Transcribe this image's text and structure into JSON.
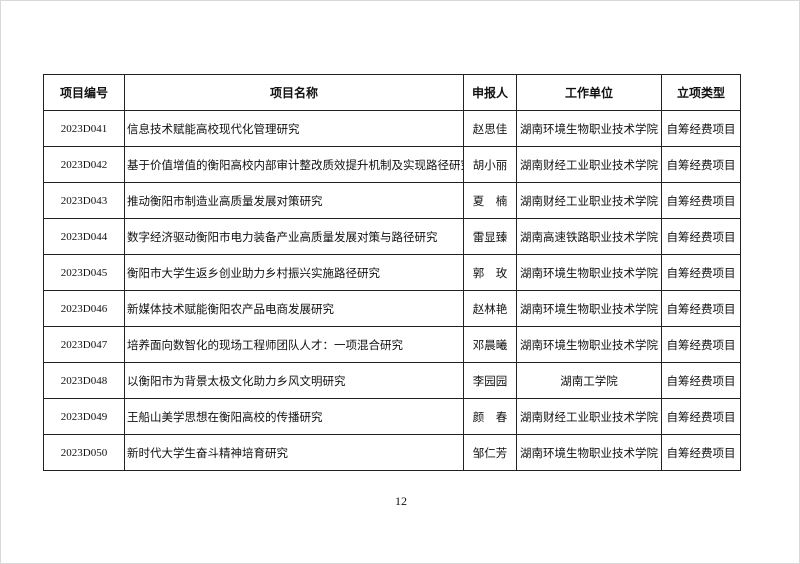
{
  "table": {
    "headers": [
      "项目编号",
      "项目名称",
      "申报人",
      "工作单位",
      "立项类型"
    ],
    "rows": [
      [
        "2023D041",
        "信息技术赋能高校现代化管理研究",
        "赵思佳",
        "湖南环境生物职业技术学院",
        "自筹经费项目"
      ],
      [
        "2023D042",
        "基于价值增值的衡阳高校内部审计整改质效提升机制及实现路径研究",
        "胡小丽",
        "湖南财经工业职业技术学院",
        "自筹经费项目"
      ],
      [
        "2023D043",
        "推动衡阳市制造业高质量发展对策研究",
        "夏　楠",
        "湖南财经工业职业技术学院",
        "自筹经费项目"
      ],
      [
        "2023D044",
        "数字经济驱动衡阳市电力装备产业高质量发展对策与路径研究",
        "雷显臻",
        "湖南高速铁路职业技术学院",
        "自筹经费项目"
      ],
      [
        "2023D045",
        "衡阳市大学生返乡创业助力乡村振兴实施路径研究",
        "郭　玫",
        "湖南环境生物职业技术学院",
        "自筹经费项目"
      ],
      [
        "2023D046",
        "新媒体技术赋能衡阳农产品电商发展研究",
        "赵林艳",
        "湖南环境生物职业技术学院",
        "自筹经费项目"
      ],
      [
        "2023D047",
        "培养面向数智化的现场工程师团队人才：一项混合研究",
        "邓晨曦",
        "湖南环境生物职业技术学院",
        "自筹经费项目"
      ],
      [
        "2023D048",
        "以衡阳市为背景太极文化助力乡风文明研究",
        "李园园",
        "湖南工学院",
        "自筹经费项目"
      ],
      [
        "2023D049",
        "王船山美学思想在衡阳高校的传播研究",
        "颜　春",
        "湖南财经工业职业技术学院",
        "自筹经费项目"
      ],
      [
        "2023D050",
        "新时代大学生奋斗精神培育研究",
        "邹仁芳",
        "湖南环境生物职业技术学院",
        "自筹经费项目"
      ]
    ]
  },
  "page_number": "12"
}
